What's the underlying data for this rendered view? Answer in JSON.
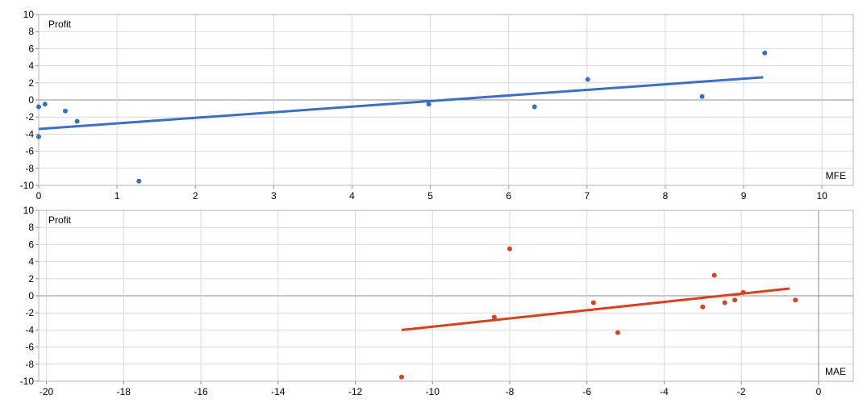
{
  "chart_data": [
    {
      "type": "scatter",
      "ylabel": "Profit",
      "xlabel": "MFE",
      "xlim": [
        0,
        10.4
      ],
      "ylim": [
        -10,
        10
      ],
      "xticks": [
        0,
        1,
        2,
        3,
        4,
        5,
        6,
        7,
        8,
        9,
        10
      ],
      "yticks": [
        -10,
        -8,
        -6,
        -4,
        -2,
        0,
        2,
        4,
        6,
        8,
        10
      ],
      "grid": true,
      "series": [
        {
          "color": "#3a6fc4",
          "points": [
            {
              "x": 0.0,
              "y": -0.8
            },
            {
              "x": 0.0,
              "y": -4.3
            },
            {
              "x": 0.08,
              "y": -0.5
            },
            {
              "x": 0.34,
              "y": -1.3
            },
            {
              "x": 0.49,
              "y": -2.5
            },
            {
              "x": 1.28,
              "y": -9.5
            },
            {
              "x": 4.98,
              "y": -0.5
            },
            {
              "x": 6.33,
              "y": -0.8
            },
            {
              "x": 7.01,
              "y": 2.4
            },
            {
              "x": 8.47,
              "y": 0.4
            },
            {
              "x": 9.27,
              "y": 5.5
            }
          ]
        }
      ],
      "trendline": {
        "color": "#3a6fc4",
        "x": [
          0.0,
          9.25
        ],
        "y": [
          -3.4,
          2.65
        ]
      }
    },
    {
      "type": "scatter",
      "ylabel": "Profit",
      "xlabel": "MAE",
      "xlim": [
        -20.2,
        0.9
      ],
      "ylim": [
        -10,
        10
      ],
      "xticks": [
        -20,
        -18,
        -16,
        -14,
        -12,
        -10,
        -8,
        -6,
        -4,
        -2,
        0
      ],
      "yticks": [
        -10,
        -8,
        -6,
        -4,
        -2,
        0,
        2,
        4,
        6,
        8,
        10
      ],
      "grid": true,
      "series": [
        {
          "color": "#d9411e",
          "points": [
            {
              "x": -10.8,
              "y": -9.5
            },
            {
              "x": -8.0,
              "y": 5.5
            },
            {
              "x": -8.4,
              "y": -2.5
            },
            {
              "x": -5.83,
              "y": -0.8
            },
            {
              "x": -5.2,
              "y": -4.3
            },
            {
              "x": -3.0,
              "y": -1.3
            },
            {
              "x": -2.7,
              "y": 2.4
            },
            {
              "x": -2.43,
              "y": -0.8
            },
            {
              "x": -2.17,
              "y": -0.5
            },
            {
              "x": -1.95,
              "y": 0.4
            },
            {
              "x": -0.6,
              "y": -0.5
            }
          ]
        }
      ],
      "trendline": {
        "color": "#d9411e",
        "x": [
          -10.8,
          -0.75
        ],
        "y": [
          -4.0,
          0.85
        ]
      }
    }
  ]
}
